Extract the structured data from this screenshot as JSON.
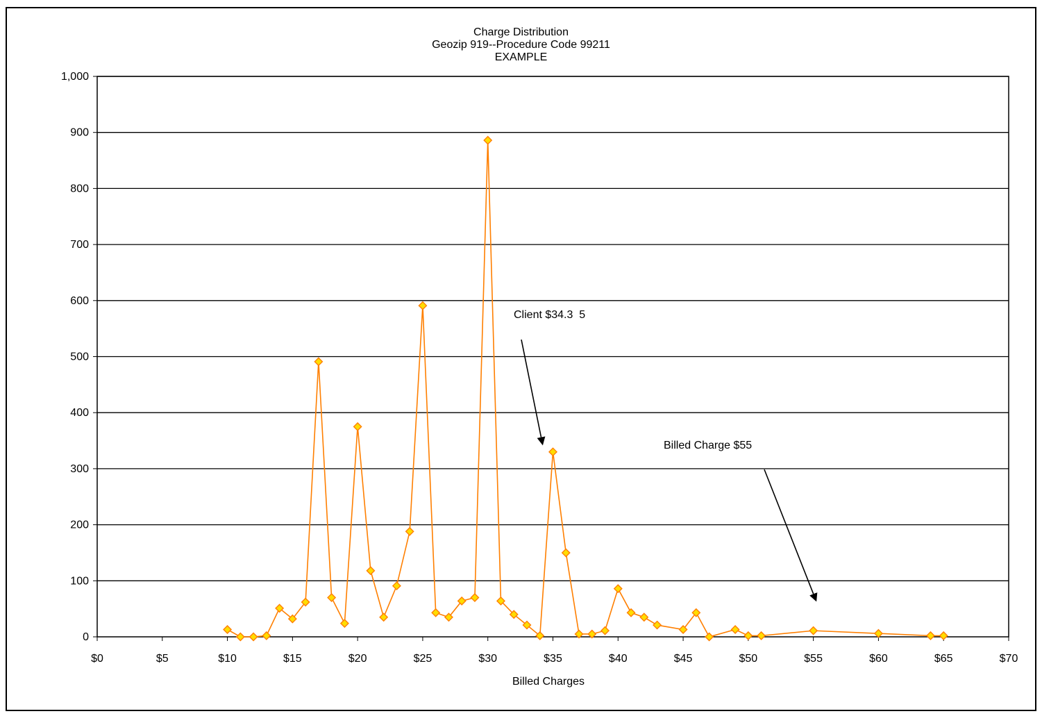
{
  "chart_data": {
    "type": "line",
    "title": "Charge Distribution",
    "subtitle": "Geozip 919--Procedure Code 99211",
    "subtitle2": "EXAMPLE",
    "xlabel": "Billed Charges",
    "ylabel": "",
    "xlim": [
      0,
      70
    ],
    "ylim": [
      0,
      1000
    ],
    "x_ticks": [
      0,
      5,
      10,
      15,
      20,
      25,
      30,
      35,
      40,
      45,
      50,
      55,
      60,
      65,
      70
    ],
    "x_tick_labels": [
      "$0",
      "$5",
      "$10",
      "$15",
      "$20",
      "$25",
      "$30",
      "$35",
      "$40",
      "$45",
      "$50",
      "$55",
      "$60",
      "$65",
      "$70"
    ],
    "y_ticks": [
      0,
      100,
      200,
      300,
      400,
      500,
      600,
      700,
      800,
      900,
      1000
    ],
    "y_tick_labels": [
      "0",
      "100",
      "200",
      "300",
      "400",
      "500",
      "600",
      "700",
      "800",
      "900",
      "1,000"
    ],
    "grid": "horizontal",
    "series_color": "#ff7f00",
    "marker_fill": "#ffdd00",
    "series": [
      {
        "x": [
          10,
          11,
          12,
          13,
          14,
          15,
          16,
          17,
          18,
          19,
          20,
          21,
          22,
          23,
          24,
          25,
          26,
          27,
          28,
          29,
          30,
          31,
          32,
          33,
          34,
          35,
          36,
          37,
          38,
          39,
          40,
          41,
          42,
          43,
          45,
          46,
          47,
          49,
          50,
          51,
          55,
          60,
          64,
          65
        ],
        "values": [
          13,
          0,
          0,
          2,
          51,
          32,
          62,
          491,
          70,
          24,
          375,
          118,
          35,
          91,
          188,
          591,
          43,
          35,
          64,
          70,
          886,
          64,
          40,
          21,
          2,
          330,
          150,
          5,
          5,
          11,
          86,
          43,
          35,
          21,
          13,
          43,
          0,
          13,
          2,
          2,
          11,
          6,
          2,
          2
        ]
      }
    ],
    "annotations": [
      {
        "text": "Client $34.3  5",
        "arrow_to": [
          34.2,
          344
        ]
      },
      {
        "text": "Billed Charge $55",
        "arrow_to": [
          55.2,
          65
        ]
      }
    ]
  }
}
